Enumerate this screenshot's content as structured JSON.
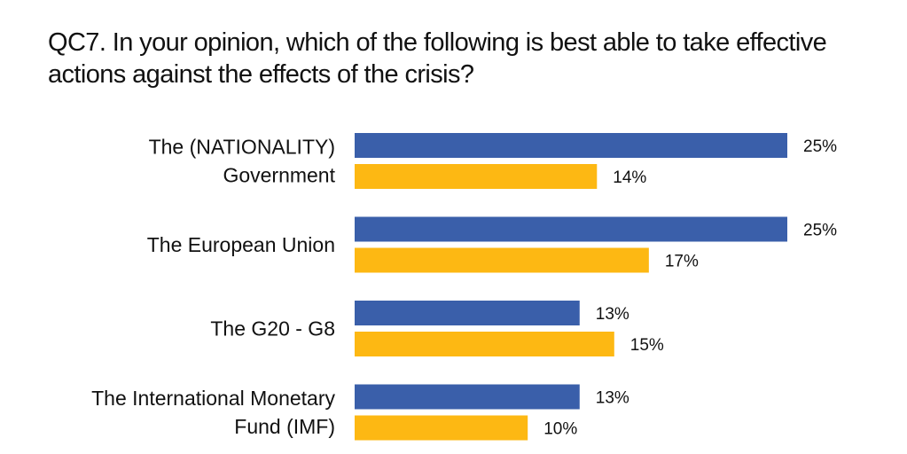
{
  "title_lines": [
    "QC7. In your opinion, which of the following is best able to take effective",
    "actions against the effects of the crisis?"
  ],
  "chart_data": {
    "type": "bar",
    "orientation": "horizontal",
    "title": "QC7. In your opinion, which of the following is best able to take effective actions against the effects of the crisis?",
    "categories": [
      [
        "The (NATIONALITY)",
        "Government"
      ],
      [
        "The European Union"
      ],
      [
        "The G20 - G8"
      ],
      [
        "The International Monetary",
        "Fund (IMF)"
      ]
    ],
    "series": [
      {
        "name": "Series 1",
        "color": "#3A5FAA",
        "values": [
          25,
          25,
          13,
          13
        ]
      },
      {
        "name": "Series 2",
        "color": "#FDB813",
        "values": [
          14,
          17,
          15,
          10
        ]
      }
    ],
    "value_suffix": "%",
    "xlim": [
      0,
      25
    ],
    "xlabel": "",
    "ylabel": "",
    "grid": false,
    "legend": "none"
  }
}
